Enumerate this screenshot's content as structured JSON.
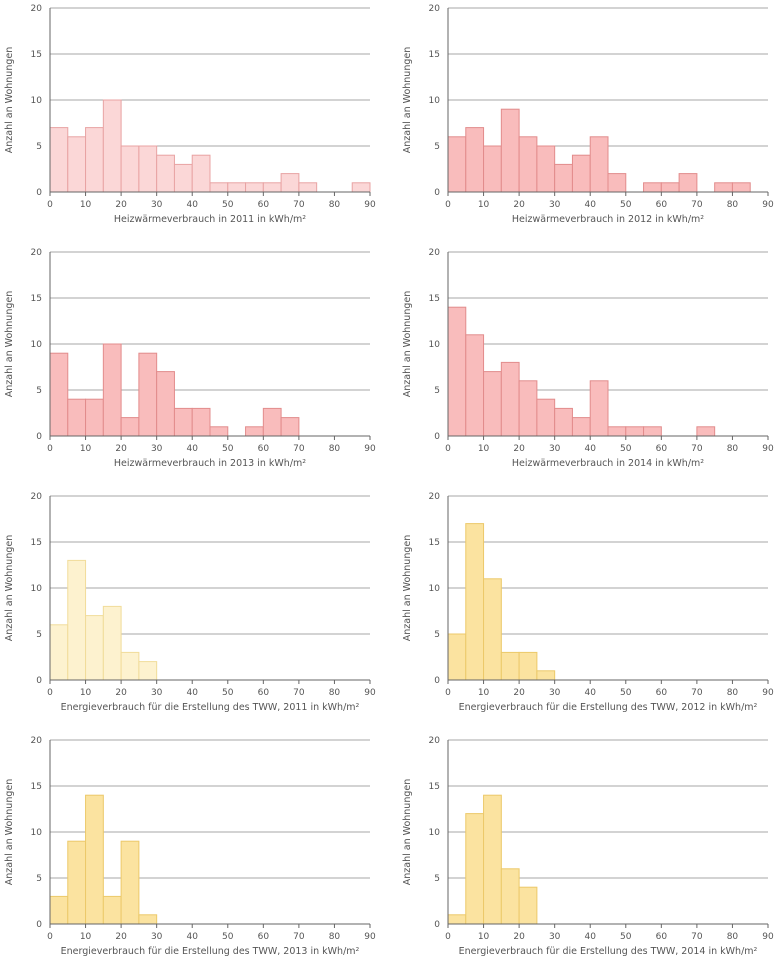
{
  "chart_data": [
    {
      "type": "bar",
      "xlabel": "Heizwärmeverbrauch in 2011 in kWh/m²",
      "ylabel": "Anzahl an Wohnungen",
      "xlim": [
        0,
        90
      ],
      "ylim": [
        0,
        20
      ],
      "xticks": [
        0,
        10,
        20,
        30,
        40,
        50,
        60,
        70,
        80,
        90
      ],
      "yticks": [
        0,
        5,
        10,
        15,
        20
      ],
      "grid": true,
      "bin_width": 5,
      "bins": [
        0,
        5,
        10,
        15,
        20,
        25,
        30,
        35,
        40,
        45,
        50,
        55,
        60,
        65,
        70,
        75,
        80,
        85
      ],
      "values": [
        7,
        6,
        7,
        10,
        5,
        5,
        4,
        3,
        4,
        1,
        1,
        1,
        1,
        2,
        1,
        0,
        0,
        1
      ],
      "fill": "#fbd7d7",
      "stroke": "#e8a3a3"
    },
    {
      "type": "bar",
      "xlabel": "Heizwärmeverbrauch in 2012 in kWh/m²",
      "ylabel": "Anzahl an Wohnungen",
      "xlim": [
        0,
        90
      ],
      "ylim": [
        0,
        20
      ],
      "xticks": [
        0,
        10,
        20,
        30,
        40,
        50,
        60,
        70,
        80,
        90
      ],
      "yticks": [
        0,
        5,
        10,
        15,
        20
      ],
      "grid": true,
      "bin_width": 5,
      "bins": [
        0,
        5,
        10,
        15,
        20,
        25,
        30,
        35,
        40,
        45,
        50,
        55,
        60,
        65,
        70,
        75,
        80
      ],
      "values": [
        6,
        7,
        5,
        9,
        6,
        5,
        3,
        4,
        6,
        2,
        0,
        1,
        1,
        2,
        0,
        1,
        1
      ],
      "fill": "#f9bcbc",
      "stroke": "#e28c8c"
    },
    {
      "type": "bar",
      "xlabel": "Heizwärmeverbrauch in 2013 in kWh/m²",
      "ylabel": "Anzahl an Wohnungen",
      "xlim": [
        0,
        90
      ],
      "ylim": [
        0,
        20
      ],
      "xticks": [
        0,
        10,
        20,
        30,
        40,
        50,
        60,
        70,
        80,
        90
      ],
      "yticks": [
        0,
        5,
        10,
        15,
        20
      ],
      "grid": true,
      "bin_width": 5,
      "bins": [
        0,
        5,
        10,
        15,
        20,
        25,
        30,
        35,
        40,
        45,
        50,
        55,
        60,
        65
      ],
      "values": [
        9,
        4,
        4,
        10,
        2,
        9,
        7,
        3,
        3,
        1,
        0,
        1,
        3,
        2
      ],
      "fill": "#f9bcbc",
      "stroke": "#e28c8c"
    },
    {
      "type": "bar",
      "xlabel": "Heizwärmeverbrauch in 2014 in kWh/m²",
      "ylabel": "Anzahl an Wohnungen",
      "xlim": [
        0,
        90
      ],
      "ylim": [
        0,
        20
      ],
      "xticks": [
        0,
        10,
        20,
        30,
        40,
        50,
        60,
        70,
        80,
        90
      ],
      "yticks": [
        0,
        5,
        10,
        15,
        20
      ],
      "grid": true,
      "bin_width": 5,
      "bins": [
        0,
        5,
        10,
        15,
        20,
        25,
        30,
        35,
        40,
        45,
        50,
        55,
        60,
        65,
        70
      ],
      "values": [
        14,
        11,
        7,
        8,
        6,
        4,
        3,
        2,
        6,
        1,
        1,
        1,
        0,
        0,
        1
      ],
      "fill": "#f9bcbc",
      "stroke": "#e28c8c"
    },
    {
      "type": "bar",
      "xlabel": "Energieverbrauch für die Erstellung des TWW, 2011  in kWh/m²",
      "ylabel": "Anzahl an Wohnungen",
      "xlim": [
        0,
        90
      ],
      "ylim": [
        0,
        20
      ],
      "xticks": [
        0,
        10,
        20,
        30,
        40,
        50,
        60,
        70,
        80,
        90
      ],
      "yticks": [
        0,
        5,
        10,
        15,
        20
      ],
      "grid": true,
      "bin_width": 5,
      "bins": [
        0,
        5,
        10,
        15,
        20,
        25
      ],
      "values": [
        6,
        13,
        7,
        8,
        3,
        2
      ],
      "fill": "#fdf2cf",
      "stroke": "#f1dc9a"
    },
    {
      "type": "bar",
      "xlabel": "Energieverbrauch für die Erstellung des TWW, 2012 in kWh/m²",
      "ylabel": "Anzahl an Wohnungen",
      "xlim": [
        0,
        90
      ],
      "ylim": [
        0,
        20
      ],
      "xticks": [
        0,
        10,
        20,
        30,
        40,
        50,
        60,
        70,
        80,
        90
      ],
      "yticks": [
        0,
        5,
        10,
        15,
        20
      ],
      "grid": true,
      "bin_width": 5,
      "bins": [
        0,
        5,
        10,
        15,
        20,
        25
      ],
      "values": [
        5,
        17,
        11,
        3,
        3,
        1
      ],
      "fill": "#fbe3a0",
      "stroke": "#ecc96a"
    },
    {
      "type": "bar",
      "xlabel": "Energieverbrauch für die Erstellung des TWW, 2013  in kWh/m²",
      "ylabel": "Anzahl an Wohnungen",
      "xlim": [
        0,
        90
      ],
      "ylim": [
        0,
        20
      ],
      "xticks": [
        0,
        10,
        20,
        30,
        40,
        50,
        60,
        70,
        80,
        90
      ],
      "yticks": [
        0,
        5,
        10,
        15,
        20
      ],
      "grid": true,
      "bin_width": 5,
      "bins": [
        0,
        5,
        10,
        15,
        20,
        25
      ],
      "values": [
        3,
        9,
        14,
        3,
        9,
        1
      ],
      "fill": "#fbe3a0",
      "stroke": "#ecc96a"
    },
    {
      "type": "bar",
      "xlabel": "Energieverbrauch für die Erstellung des TWW, 2014 in kWh/m²",
      "ylabel": "Anzahl an Wohnungen",
      "xlim": [
        0,
        90
      ],
      "ylim": [
        0,
        20
      ],
      "xticks": [
        0,
        10,
        20,
        30,
        40,
        50,
        60,
        70,
        80,
        90
      ],
      "yticks": [
        0,
        5,
        10,
        15,
        20
      ],
      "grid": true,
      "bin_width": 5,
      "bins": [
        0,
        5,
        10,
        15,
        20
      ],
      "values": [
        1,
        12,
        14,
        6,
        4
      ],
      "fill": "#fbe3a0",
      "stroke": "#ecc96a"
    }
  ]
}
